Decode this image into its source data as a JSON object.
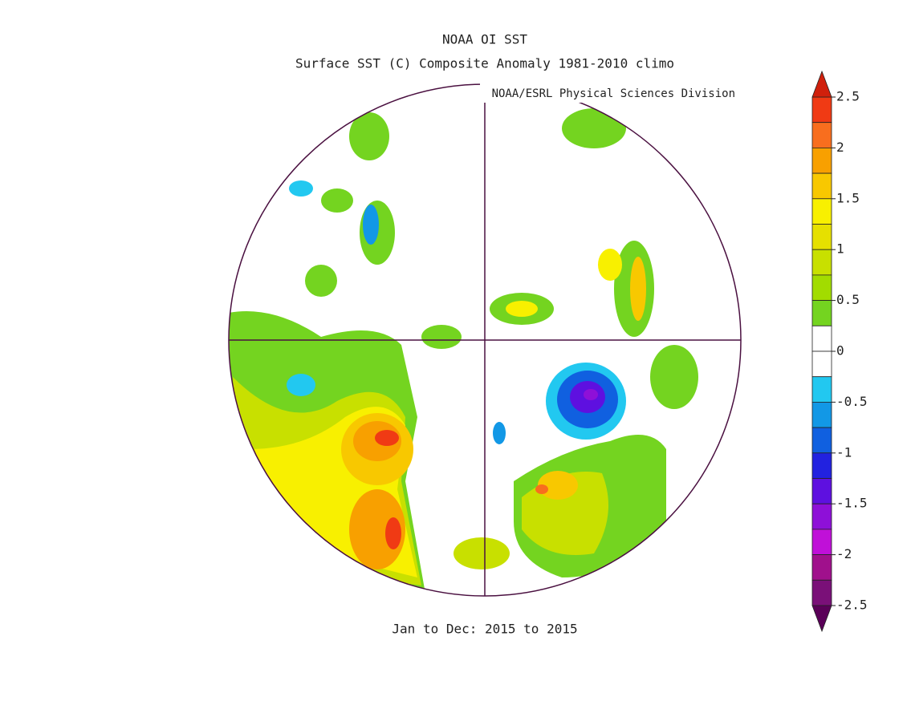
{
  "title": "NOAA OI SST",
  "subtitle": "Surface SST (C) Composite Anomaly 1981-2010 climo",
  "attribution": "NOAA/ESRL Physical Sciences Division",
  "footer": "Jan to Dec: 2015 to 2015",
  "colorbar": {
    "ticks": [
      2.5,
      2,
      1.5,
      1,
      0.5,
      0,
      -0.5,
      -1,
      -1.5,
      -2,
      -2.5
    ],
    "levels": [
      2.5,
      2.25,
      2,
      1.75,
      1.5,
      1.25,
      1,
      0.75,
      0.5,
      0.25,
      0,
      -0.25,
      -0.5,
      -0.75,
      -1,
      -1.25,
      -1.5,
      -1.75,
      -2,
      -2.25,
      -2.5
    ],
    "colors": [
      "#f03a14",
      "#f86e1e",
      "#f8a000",
      "#f8c800",
      "#f8f000",
      "#e6e000",
      "#c8e000",
      "#a2dc00",
      "#74d420",
      "#ffffff",
      "#ffffff",
      "#22c8f0",
      "#1298e6",
      "#1060e0",
      "#2222e0",
      "#5e10e0",
      "#8e10d8",
      "#c010d8",
      "#a0108c",
      "#7a1078"
    ],
    "over_color": "#d0200c",
    "under_color": "#5a0058"
  }
}
